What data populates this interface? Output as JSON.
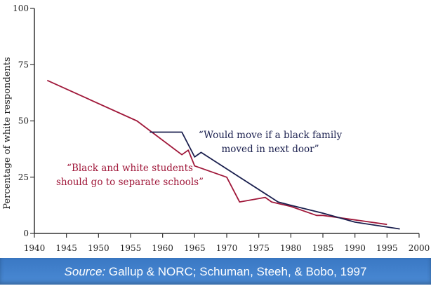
{
  "chart_data": {
    "type": "line",
    "title": "",
    "xlabel": "",
    "ylabel": "Percentage of white respondents",
    "xlim": [
      1940,
      2000
    ],
    "ylim": [
      0,
      100
    ],
    "xticks": [
      1940,
      1945,
      1950,
      1955,
      1960,
      1965,
      1970,
      1975,
      1980,
      1985,
      1990,
      1995,
      2000
    ],
    "yticks": [
      0,
      25,
      50,
      75,
      100
    ],
    "grid": false,
    "series": [
      {
        "name": "“Black and white students should go to separate schools”",
        "label_lines": [
          "“Black and white students",
          "should go to separate schools”"
        ],
        "color": "#a0183a",
        "x": [
          1942,
          1956,
          1963,
          1964,
          1965,
          1970,
          1972,
          1976,
          1977,
          1980,
          1984,
          1985,
          1990,
          1995
        ],
        "y": [
          68,
          50,
          35,
          37,
          30,
          25,
          14,
          16,
          14,
          12,
          8,
          8,
          6,
          4
        ]
      },
      {
        "name": "“Would move if a black family moved in next door”",
        "label_lines": [
          "“Would move if a black family",
          "moved in next door”"
        ],
        "color": "#1a1f4e",
        "x": [
          1958,
          1963,
          1965,
          1966,
          1978,
          1980,
          1985,
          1990,
          1997
        ],
        "y": [
          45,
          45,
          34,
          36,
          14,
          12.5,
          9,
          5,
          2
        ]
      }
    ]
  },
  "footer": {
    "source_label": "Source:",
    "source_text": " Gallup & NORC; Schuman, Steeh, & Bobo, 1997",
    "background": "#3f7fcc"
  }
}
